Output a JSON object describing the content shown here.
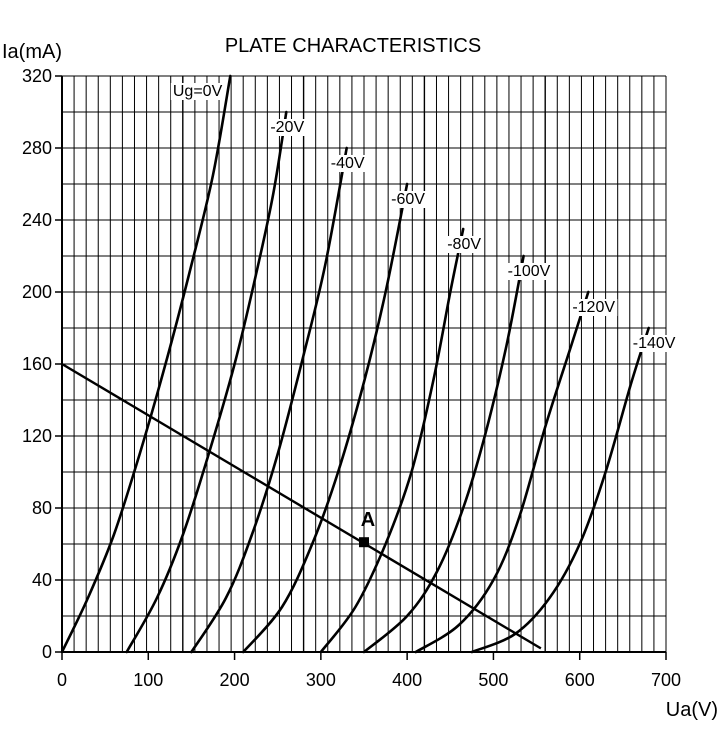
{
  "chart_data": {
    "type": "line",
    "title": "PLATE CHARACTERISTICS",
    "xlabel": "Ua(V)",
    "ylabel": "Ia(mA)",
    "xlim": [
      0,
      700
    ],
    "ylim": [
      0,
      320
    ],
    "x_ticks": [
      0,
      100,
      200,
      300,
      400,
      500,
      600,
      700
    ],
    "y_ticks": [
      0,
      40,
      80,
      120,
      160,
      200,
      240,
      280,
      320
    ],
    "grid": true,
    "series": [
      {
        "name": "Ug=0V",
        "points": [
          [
            0,
            0
          ],
          [
            30,
            30
          ],
          [
            60,
            65
          ],
          [
            90,
            110
          ],
          [
            120,
            160
          ],
          [
            150,
            215
          ],
          [
            175,
            265
          ],
          [
            195,
            320
          ]
        ]
      },
      {
        "name": "-20V",
        "points": [
          [
            75,
            0
          ],
          [
            110,
            30
          ],
          [
            140,
            65
          ],
          [
            170,
            110
          ],
          [
            200,
            160
          ],
          [
            225,
            210
          ],
          [
            245,
            255
          ],
          [
            260,
            300
          ]
        ]
      },
      {
        "name": "-40V",
        "points": [
          [
            150,
            0
          ],
          [
            190,
            30
          ],
          [
            220,
            65
          ],
          [
            250,
            110
          ],
          [
            280,
            165
          ],
          [
            305,
            215
          ],
          [
            330,
            280
          ]
        ]
      },
      {
        "name": "-60V",
        "points": [
          [
            210,
            0
          ],
          [
            255,
            25
          ],
          [
            290,
            60
          ],
          [
            320,
            100
          ],
          [
            350,
            150
          ],
          [
            375,
            200
          ],
          [
            400,
            260
          ]
        ]
      },
      {
        "name": "-80V",
        "points": [
          [
            300,
            0
          ],
          [
            340,
            25
          ],
          [
            375,
            60
          ],
          [
            405,
            100
          ],
          [
            430,
            150
          ],
          [
            450,
            200
          ],
          [
            465,
            235
          ]
        ]
      },
      {
        "name": "-100V",
        "points": [
          [
            350,
            0
          ],
          [
            400,
            20
          ],
          [
            435,
            45
          ],
          [
            465,
            80
          ],
          [
            490,
            120
          ],
          [
            515,
            170
          ],
          [
            535,
            220
          ]
        ]
      },
      {
        "name": "-120V",
        "points": [
          [
            410,
            0
          ],
          [
            460,
            15
          ],
          [
            500,
            40
          ],
          [
            530,
            75
          ],
          [
            560,
            125
          ],
          [
            590,
            170
          ],
          [
            610,
            200
          ]
        ]
      },
      {
        "name": "-140V",
        "points": [
          [
            475,
            0
          ],
          [
            525,
            10
          ],
          [
            565,
            30
          ],
          [
            600,
            60
          ],
          [
            630,
            100
          ],
          [
            660,
            150
          ],
          [
            680,
            180
          ]
        ]
      }
    ],
    "load_line": {
      "points": [
        [
          0,
          160
        ],
        [
          555,
          2
        ]
      ]
    },
    "operating_point": {
      "label": "A",
      "x": 350,
      "y": 61
    }
  }
}
